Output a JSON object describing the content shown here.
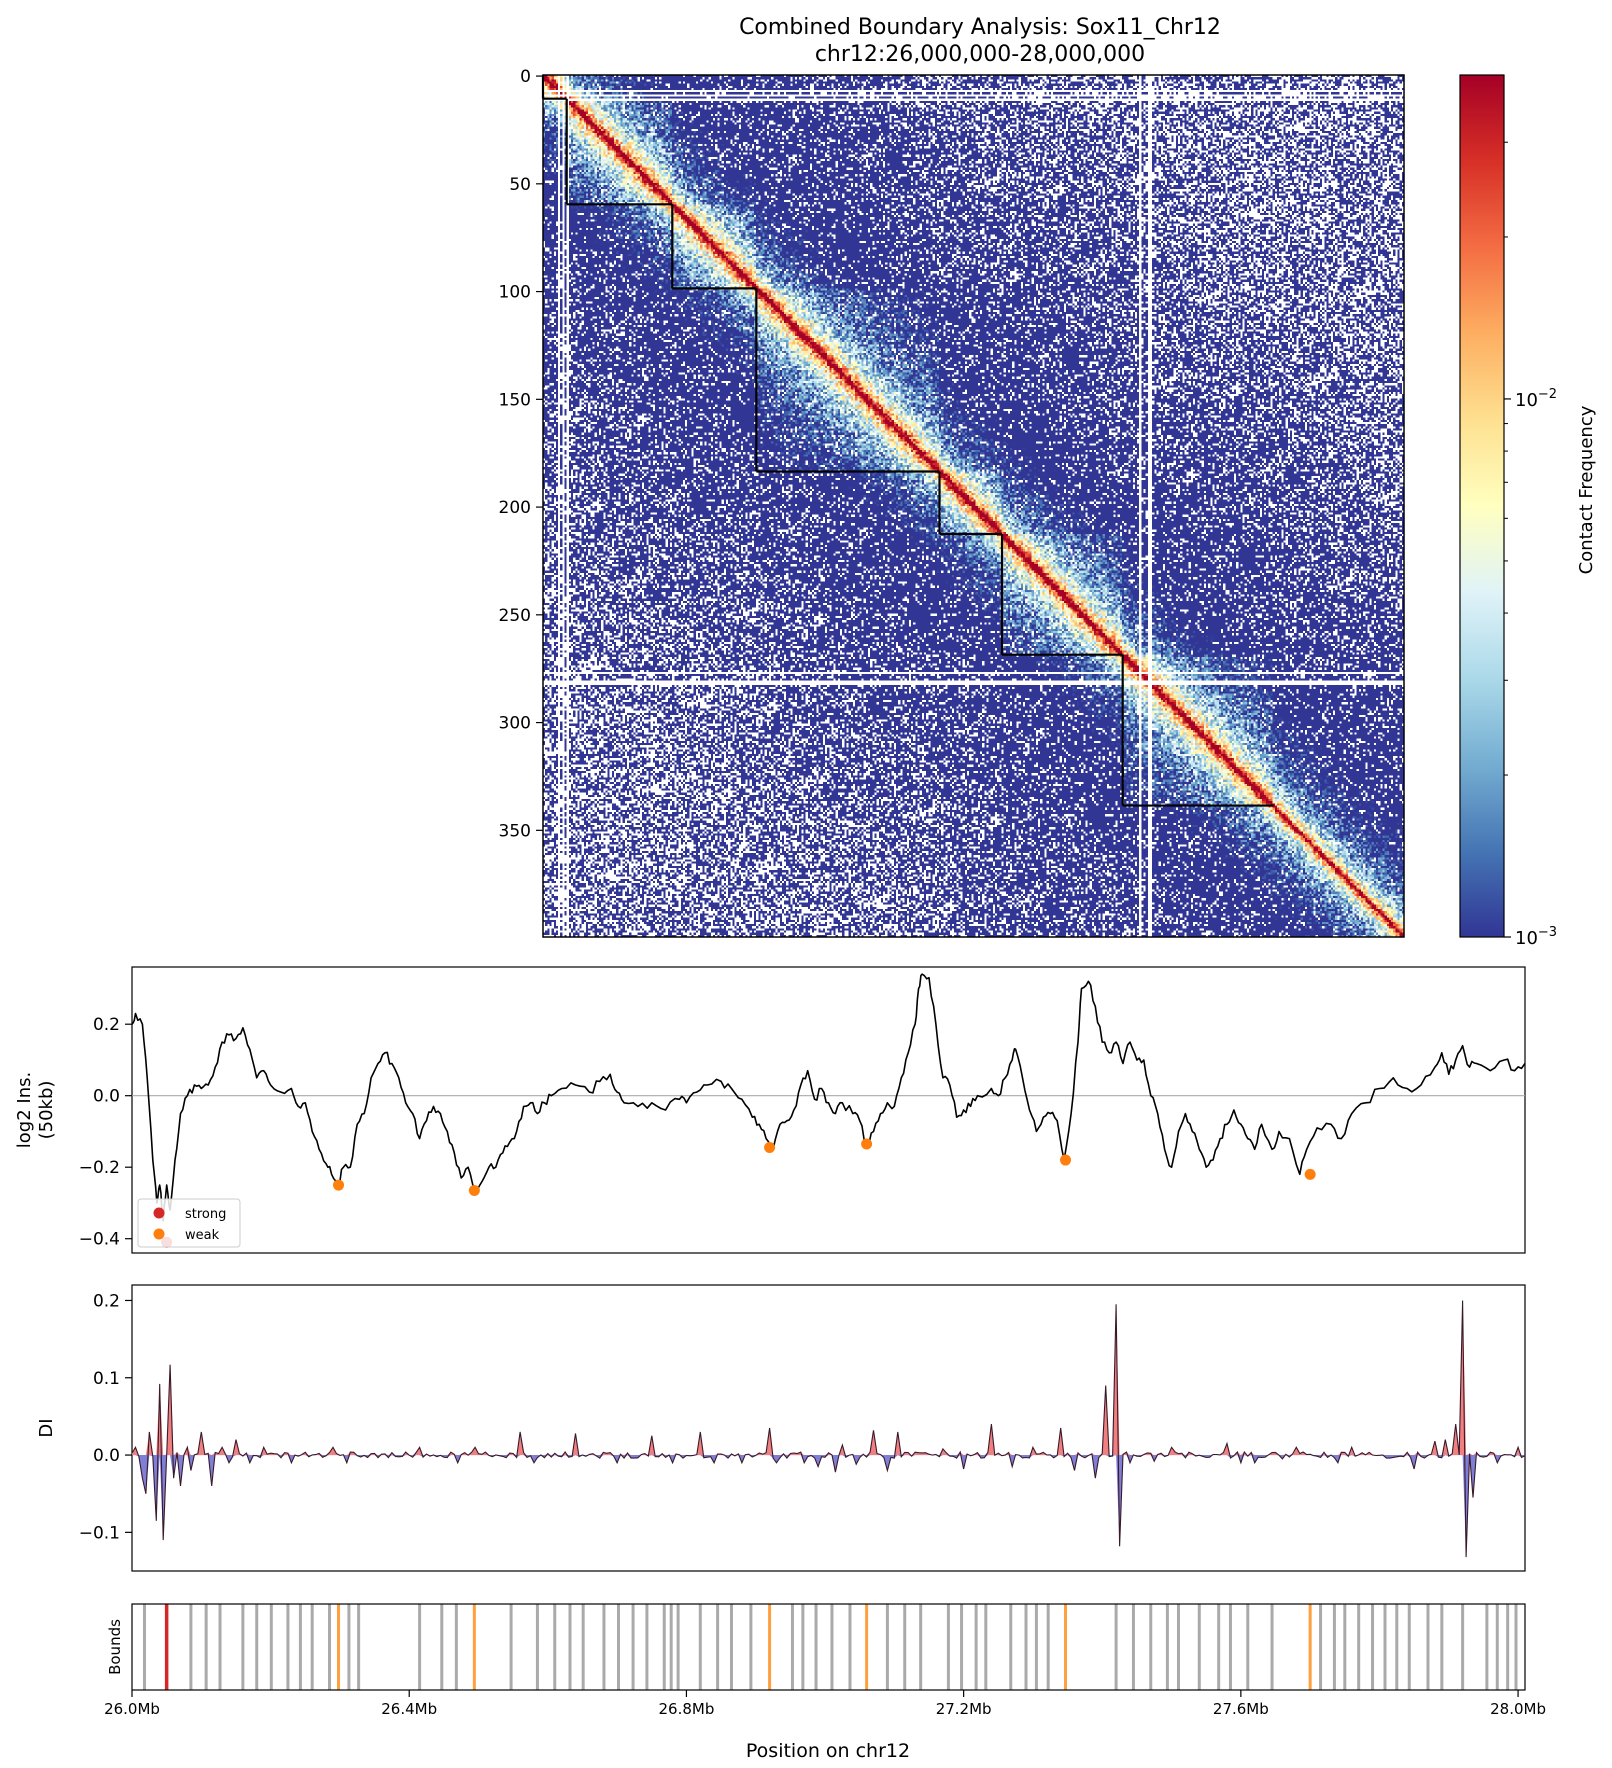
{
  "chart_data": [
    {
      "type": "heatmap",
      "title": "Combined Boundary Analysis: Sox11_Chr12",
      "subtitle": "chr12:26,000,000-28,000,000",
      "bins": 400,
      "yticks": [
        "0",
        "50",
        "100",
        "150",
        "200",
        "250",
        "300",
        "350"
      ],
      "ytick_values": [
        0,
        50,
        100,
        150,
        200,
        250,
        300,
        350
      ],
      "colorbar": {
        "label": "Contact Frequency",
        "scale": "log",
        "range": [
          0.001,
          0.04
        ],
        "ticks": [
          {
            "value": 0.01,
            "base": "10",
            "exp": "−2"
          },
          {
            "value": 0.001,
            "base": "10",
            "exp": "−3"
          }
        ],
        "colors": [
          "#313695",
          "#4575b4",
          "#74add1",
          "#abd9e9",
          "#e0f3f8",
          "#ffffbf",
          "#fee090",
          "#fdae61",
          "#f46d43",
          "#d73027",
          "#a50026"
        ]
      },
      "tad_boundaries": [
        0,
        11,
        60,
        99,
        184,
        213,
        269,
        339,
        340
      ],
      "blank_bins": [
        7,
        9,
        11,
        277,
        281,
        282
      ]
    },
    {
      "type": "line",
      "ylabel_line1": "log2 Ins.",
      "ylabel_line2": "(50kb)",
      "ylim": [
        -0.44,
        0.36
      ],
      "yticks": [
        "0.2",
        "0.0",
        "−0.2",
        "−0.4"
      ],
      "ytick_values": [
        0.2,
        0.0,
        -0.2,
        -0.4
      ],
      "xlim": [
        26.0,
        28.01
      ],
      "anchors": [
        [
          26.0,
          0.2
        ],
        [
          26.005,
          0.23
        ],
        [
          26.015,
          0.2
        ],
        [
          26.022,
          0.05
        ],
        [
          26.03,
          -0.18
        ],
        [
          26.036,
          -0.3
        ],
        [
          26.04,
          -0.25
        ],
        [
          26.045,
          -0.35
        ],
        [
          26.05,
          -0.25
        ],
        [
          26.055,
          -0.32
        ],
        [
          26.062,
          -0.18
        ],
        [
          26.07,
          -0.05
        ],
        [
          26.08,
          0.0
        ],
        [
          26.09,
          0.03
        ],
        [
          26.1,
          0.02
        ],
        [
          26.11,
          0.03
        ],
        [
          26.12,
          0.08
        ],
        [
          26.13,
          0.15
        ],
        [
          26.14,
          0.17
        ],
        [
          26.15,
          0.16
        ],
        [
          26.16,
          0.19
        ],
        [
          26.17,
          0.13
        ],
        [
          26.18,
          0.05
        ],
        [
          26.19,
          0.07
        ],
        [
          26.2,
          0.03
        ],
        [
          26.215,
          0.01
        ],
        [
          26.23,
          0.02
        ],
        [
          26.24,
          -0.03
        ],
        [
          26.25,
          -0.02
        ],
        [
          26.26,
          -0.1
        ],
        [
          26.27,
          -0.15
        ],
        [
          26.28,
          -0.19
        ],
        [
          26.288,
          -0.22
        ],
        [
          26.297,
          -0.25
        ],
        [
          26.305,
          -0.2
        ],
        [
          26.315,
          -0.2
        ],
        [
          26.325,
          -0.08
        ],
        [
          26.335,
          -0.05
        ],
        [
          26.345,
          0.05
        ],
        [
          26.355,
          0.09
        ],
        [
          26.365,
          0.12
        ],
        [
          26.375,
          0.09
        ],
        [
          26.385,
          0.05
        ],
        [
          26.395,
          -0.02
        ],
        [
          26.405,
          -0.05
        ],
        [
          26.415,
          -0.12
        ],
        [
          26.425,
          -0.07
        ],
        [
          26.435,
          -0.03
        ],
        [
          26.445,
          -0.05
        ],
        [
          26.455,
          -0.1
        ],
        [
          26.465,
          -0.16
        ],
        [
          26.475,
          -0.23
        ],
        [
          26.485,
          -0.2
        ],
        [
          26.495,
          -0.27
        ],
        [
          26.505,
          -0.24
        ],
        [
          26.515,
          -0.2
        ],
        [
          26.525,
          -0.2
        ],
        [
          26.535,
          -0.16
        ],
        [
          26.545,
          -0.13
        ],
        [
          26.555,
          -0.1
        ],
        [
          26.565,
          -0.03
        ],
        [
          26.575,
          -0.02
        ],
        [
          26.585,
          -0.05
        ],
        [
          26.595,
          -0.02
        ],
        [
          26.605,
          0.0
        ],
        [
          26.62,
          0.02
        ],
        [
          26.64,
          0.03
        ],
        [
          26.66,
          0.01
        ],
        [
          26.675,
          0.04
        ],
        [
          26.69,
          0.06
        ],
        [
          26.7,
          0.01
        ],
        [
          26.71,
          -0.02
        ],
        [
          26.73,
          -0.03
        ],
        [
          26.75,
          -0.02
        ],
        [
          26.77,
          -0.04
        ],
        [
          26.79,
          -0.01
        ],
        [
          26.8,
          -0.02
        ],
        [
          26.815,
          0.01
        ],
        [
          26.83,
          0.03
        ],
        [
          26.85,
          0.04
        ],
        [
          26.865,
          0.02
        ],
        [
          26.88,
          -0.01
        ],
        [
          26.895,
          -0.06
        ],
        [
          26.905,
          -0.08
        ],
        [
          26.915,
          -0.12
        ],
        [
          26.925,
          -0.15
        ],
        [
          26.935,
          -0.08
        ],
        [
          26.945,
          -0.07
        ],
        [
          26.955,
          -0.04
        ],
        [
          26.965,
          0.03
        ],
        [
          26.975,
          0.07
        ],
        [
          26.985,
          -0.01
        ],
        [
          26.995,
          0.02
        ],
        [
          27.005,
          -0.02
        ],
        [
          27.015,
          -0.05
        ],
        [
          27.025,
          -0.02
        ],
        [
          27.04,
          -0.05
        ],
        [
          27.05,
          -0.07
        ],
        [
          27.06,
          -0.14
        ],
        [
          27.07,
          -0.1
        ],
        [
          27.08,
          -0.05
        ],
        [
          27.09,
          -0.02
        ],
        [
          27.1,
          -0.03
        ],
        [
          27.11,
          0.05
        ],
        [
          27.12,
          0.12
        ],
        [
          27.13,
          0.2
        ],
        [
          27.135,
          0.3
        ],
        [
          27.14,
          0.34
        ],
        [
          27.15,
          0.33
        ],
        [
          27.16,
          0.2
        ],
        [
          27.17,
          0.05
        ],
        [
          27.18,
          0.03
        ],
        [
          27.19,
          -0.06
        ],
        [
          27.2,
          -0.04
        ],
        [
          27.21,
          -0.03
        ],
        [
          27.22,
          0.0
        ],
        [
          27.24,
          0.02
        ],
        [
          27.25,
          0.0
        ],
        [
          27.26,
          0.05
        ],
        [
          27.27,
          0.1
        ],
        [
          27.275,
          0.13
        ],
        [
          27.285,
          0.05
        ],
        [
          27.295,
          -0.04
        ],
        [
          27.305,
          -0.1
        ],
        [
          27.315,
          -0.06
        ],
        [
          27.325,
          -0.05
        ],
        [
          27.335,
          -0.07
        ],
        [
          27.345,
          -0.18
        ],
        [
          27.355,
          -0.05
        ],
        [
          27.365,
          0.15
        ],
        [
          27.37,
          0.3
        ],
        [
          27.38,
          0.32
        ],
        [
          27.39,
          0.25
        ],
        [
          27.4,
          0.15
        ],
        [
          27.41,
          0.12
        ],
        [
          27.42,
          0.15
        ],
        [
          27.43,
          0.09
        ],
        [
          27.44,
          0.15
        ],
        [
          27.45,
          0.1
        ],
        [
          27.46,
          0.1
        ],
        [
          27.47,
          0.0
        ],
        [
          27.48,
          -0.05
        ],
        [
          27.49,
          -0.15
        ],
        [
          27.5,
          -0.2
        ],
        [
          27.51,
          -0.1
        ],
        [
          27.52,
          -0.05
        ],
        [
          27.53,
          -0.1
        ],
        [
          27.54,
          -0.15
        ],
        [
          27.55,
          -0.2
        ],
        [
          27.56,
          -0.18
        ],
        [
          27.57,
          -0.12
        ],
        [
          27.58,
          -0.08
        ],
        [
          27.59,
          -0.04
        ],
        [
          27.6,
          -0.08
        ],
        [
          27.61,
          -0.12
        ],
        [
          27.62,
          -0.15
        ],
        [
          27.63,
          -0.08
        ],
        [
          27.645,
          -0.15
        ],
        [
          27.655,
          -0.1
        ],
        [
          27.67,
          -0.12
        ],
        [
          27.685,
          -0.22
        ],
        [
          27.695,
          -0.15
        ],
        [
          27.71,
          -0.09
        ],
        [
          27.73,
          -0.08
        ],
        [
          27.745,
          -0.12
        ],
        [
          27.76,
          -0.05
        ],
        [
          27.78,
          -0.02
        ],
        [
          27.8,
          0.02
        ],
        [
          27.82,
          0.05
        ],
        [
          27.84,
          0.02
        ],
        [
          27.86,
          0.03
        ],
        [
          27.88,
          0.08
        ],
        [
          27.89,
          0.12
        ],
        [
          27.9,
          0.06
        ],
        [
          27.91,
          0.1
        ],
        [
          27.92,
          0.14
        ],
        [
          27.93,
          0.08
        ],
        [
          27.94,
          0.09
        ],
        [
          27.96,
          0.07
        ],
        [
          27.98,
          0.1
        ],
        [
          27.995,
          0.07
        ],
        [
          28.01,
          0.09
        ]
      ],
      "boundaries": [
        {
          "x": 26.05,
          "y": -0.41,
          "class": "strong"
        },
        {
          "x": 26.298,
          "y": -0.25,
          "class": "weak"
        },
        {
          "x": 26.494,
          "y": -0.265,
          "class": "weak"
        },
        {
          "x": 26.92,
          "y": -0.145,
          "class": "weak"
        },
        {
          "x": 27.06,
          "y": -0.135,
          "class": "weak"
        },
        {
          "x": 27.347,
          "y": -0.18,
          "class": "weak"
        },
        {
          "x": 27.7,
          "y": -0.22,
          "class": "weak"
        }
      ],
      "legend": [
        {
          "label": "strong",
          "color": "#d62728"
        },
        {
          "label": "weak",
          "color": "#ff7f0e"
        }
      ],
      "line_color": "#000000",
      "zero_line_color": "#aaaaaa"
    },
    {
      "type": "area",
      "ylabel": "DI",
      "ylim": [
        -0.15,
        0.22
      ],
      "yticks": [
        "0.2",
        "0.1",
        "0.0",
        "−0.1"
      ],
      "ytick_values": [
        0.2,
        0.1,
        0.0,
        -0.1
      ],
      "xlim": [
        26.0,
        28.01
      ],
      "spikes": [
        [
          26.005,
          0.01
        ],
        [
          26.013,
          -0.03
        ],
        [
          26.02,
          -0.05
        ],
        [
          26.027,
          0.03
        ],
        [
          26.033,
          -0.085
        ],
        [
          26.039,
          0.092
        ],
        [
          26.045,
          -0.11
        ],
        [
          26.053,
          0.117
        ],
        [
          26.06,
          -0.03
        ],
        [
          26.07,
          -0.04
        ],
        [
          26.08,
          0.01
        ],
        [
          26.085,
          -0.02
        ],
        [
          26.1,
          0.03
        ],
        [
          26.115,
          -0.04
        ],
        [
          26.13,
          0.01
        ],
        [
          26.14,
          -0.01
        ],
        [
          26.15,
          0.02
        ],
        [
          26.17,
          -0.01
        ],
        [
          26.19,
          0.01
        ],
        [
          26.23,
          -0.01
        ],
        [
          26.29,
          0.01
        ],
        [
          26.31,
          -0.01
        ],
        [
          26.415,
          0.01
        ],
        [
          26.47,
          -0.01
        ],
        [
          26.495,
          0.01
        ],
        [
          26.56,
          0.03
        ],
        [
          26.58,
          -0.01
        ],
        [
          26.64,
          0.028
        ],
        [
          26.7,
          -0.01
        ],
        [
          26.75,
          0.025
        ],
        [
          26.78,
          -0.01
        ],
        [
          26.82,
          0.03
        ],
        [
          26.84,
          -0.01
        ],
        [
          26.88,
          -0.01
        ],
        [
          26.92,
          0.035
        ],
        [
          26.93,
          -0.01
        ],
        [
          26.97,
          -0.01
        ],
        [
          26.99,
          -0.015
        ],
        [
          27.015,
          -0.022
        ],
        [
          27.025,
          0.013
        ],
        [
          27.045,
          -0.012
        ],
        [
          27.07,
          0.032
        ],
        [
          27.09,
          -0.02
        ],
        [
          27.105,
          0.03
        ],
        [
          27.17,
          0.008
        ],
        [
          27.2,
          -0.018
        ],
        [
          27.24,
          0.04
        ],
        [
          27.27,
          -0.015
        ],
        [
          27.3,
          0.01
        ],
        [
          27.34,
          0.035
        ],
        [
          27.36,
          -0.02
        ],
        [
          27.39,
          -0.03
        ],
        [
          27.405,
          0.09
        ],
        [
          27.418,
          0.195
        ],
        [
          27.425,
          -0.118
        ],
        [
          27.44,
          -0.01
        ],
        [
          27.475,
          -0.008
        ],
        [
          27.5,
          0.01
        ],
        [
          27.58,
          0.015
        ],
        [
          27.6,
          -0.01
        ],
        [
          27.62,
          -0.01
        ],
        [
          27.66,
          -0.005
        ],
        [
          27.68,
          0.01
        ],
        [
          27.74,
          -0.01
        ],
        [
          27.76,
          0.01
        ],
        [
          27.85,
          -0.018
        ],
        [
          27.88,
          0.018
        ],
        [
          27.895,
          0.02
        ],
        [
          27.91,
          0.04
        ],
        [
          27.92,
          0.2
        ],
        [
          27.925,
          -0.132
        ],
        [
          27.935,
          -0.055
        ],
        [
          27.97,
          -0.01
        ],
        [
          28.0,
          0.01
        ]
      ],
      "pos_fill": "#f08080",
      "neg_fill": "#7f7fd6",
      "pos_line": "#5a1a1a",
      "neg_line": "#1a1a5a"
    },
    {
      "type": "bar",
      "ylabel": "Bounds",
      "xlabel": "Position on chr12",
      "xticks": [
        "26.0Mb",
        "26.4Mb",
        "26.8Mb",
        "27.2Mb",
        "27.6Mb",
        "28.0Mb"
      ],
      "xtick_values": [
        26.0,
        26.4,
        26.8,
        27.2,
        27.6,
        28.0
      ],
      "xlim": [
        26.0,
        28.01
      ],
      "weak_color": "#ffa040",
      "strong_color": "#d62728",
      "other_color": "#aaaaaa",
      "strong": [
        26.05
      ],
      "weak": [
        26.298,
        26.494,
        26.92,
        27.06,
        27.347,
        27.7
      ],
      "other": [
        26.018,
        26.085,
        26.107,
        26.127,
        26.16,
        26.18,
        26.201,
        26.225,
        26.243,
        26.26,
        26.285,
        26.313,
        26.327,
        26.415,
        26.447,
        26.468,
        26.547,
        26.585,
        26.61,
        26.632,
        26.651,
        26.681,
        26.702,
        26.723,
        26.743,
        26.768,
        26.778,
        26.788,
        26.82,
        26.845,
        26.865,
        26.893,
        26.953,
        26.968,
        26.987,
        27.01,
        27.036,
        27.09,
        27.115,
        27.138,
        27.178,
        27.197,
        27.218,
        27.232,
        27.268,
        27.29,
        27.305,
        27.322,
        27.42,
        27.445,
        27.47,
        27.494,
        27.51,
        27.54,
        27.568,
        27.585,
        27.61,
        27.645,
        27.715,
        27.735,
        27.75,
        27.77,
        27.79,
        27.808,
        27.825,
        27.843,
        27.87,
        27.89,
        27.92,
        27.955,
        27.97,
        27.985,
        27.997
      ]
    }
  ]
}
